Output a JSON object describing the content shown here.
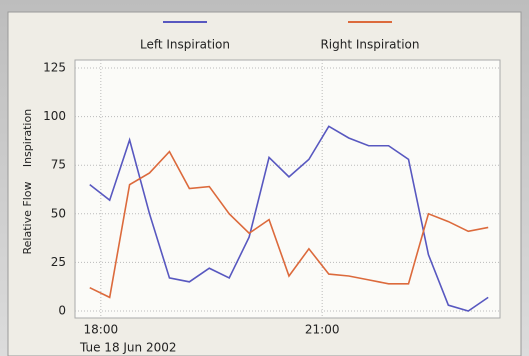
{
  "chart_data": {
    "type": "line",
    "x": [
      17.85,
      18.12,
      18.39,
      18.66,
      18.93,
      19.2,
      19.47,
      19.74,
      20.01,
      20.28,
      20.55,
      20.82,
      21.09,
      21.36,
      21.63,
      21.9,
      22.17,
      22.44,
      22.71,
      22.98,
      23.25
    ],
    "series": [
      {
        "name": "Left Inspiration",
        "color": "#5858c0",
        "values": [
          65,
          57,
          88,
          50,
          17,
          15,
          22,
          17,
          38,
          79,
          69,
          78,
          95,
          89,
          85,
          85,
          78,
          29,
          3,
          0,
          7
        ]
      },
      {
        "name": "Right Inspiration",
        "color": "#dc6a3c",
        "values": [
          12,
          7,
          65,
          71,
          82,
          63,
          64,
          50,
          40,
          47,
          18,
          32,
          19,
          18,
          16,
          14,
          14,
          50,
          46,
          41,
          43
        ]
      }
    ],
    "ylabel": [
      "Relative Flow",
      "Inspiration"
    ],
    "date_label": "Tue 18 Jun 2002",
    "xlim": [
      17.65,
      23.41
    ],
    "xticks": [
      {
        "value": 18,
        "label": "18:00"
      },
      {
        "value": 21,
        "label": "21:00"
      }
    ],
    "ylim": [
      0,
      125
    ],
    "yticks": [
      0,
      25,
      50,
      75,
      100,
      125
    ],
    "grid": true
  }
}
